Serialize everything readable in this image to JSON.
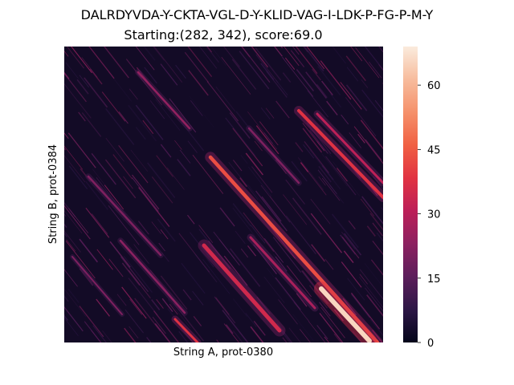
{
  "chart_data": {
    "type": "heatmap",
    "title": "DALRDYVDA-Y-CKTA-VGL-D-Y-KLID-VAG-I-LDK-P-FG-P-M-Y",
    "subtitle": "Starting:(282, 342), score:69.0",
    "xlabel": "String A, prot-0380",
    "ylabel": "String B, prot-0384",
    "colorbar": {
      "range": [
        0,
        69
      ],
      "ticks": [
        "0",
        "15",
        "30",
        "45",
        "60"
      ],
      "tick_values": [
        0,
        15,
        30,
        45,
        60
      ],
      "colormap": "rocket",
      "colors": [
        "#03051a",
        "#2d1746",
        "#5c1e5b",
        "#8c2160",
        "#bc1f58",
        "#e13342",
        "#f06043",
        "#f5916b",
        "#f7bc9d",
        "#faebdd"
      ]
    },
    "x_tick_labels": [],
    "y_tick_labels": [],
    "alignment_start": [
      282,
      342
    ],
    "score": 69.0,
    "grid": false
  }
}
